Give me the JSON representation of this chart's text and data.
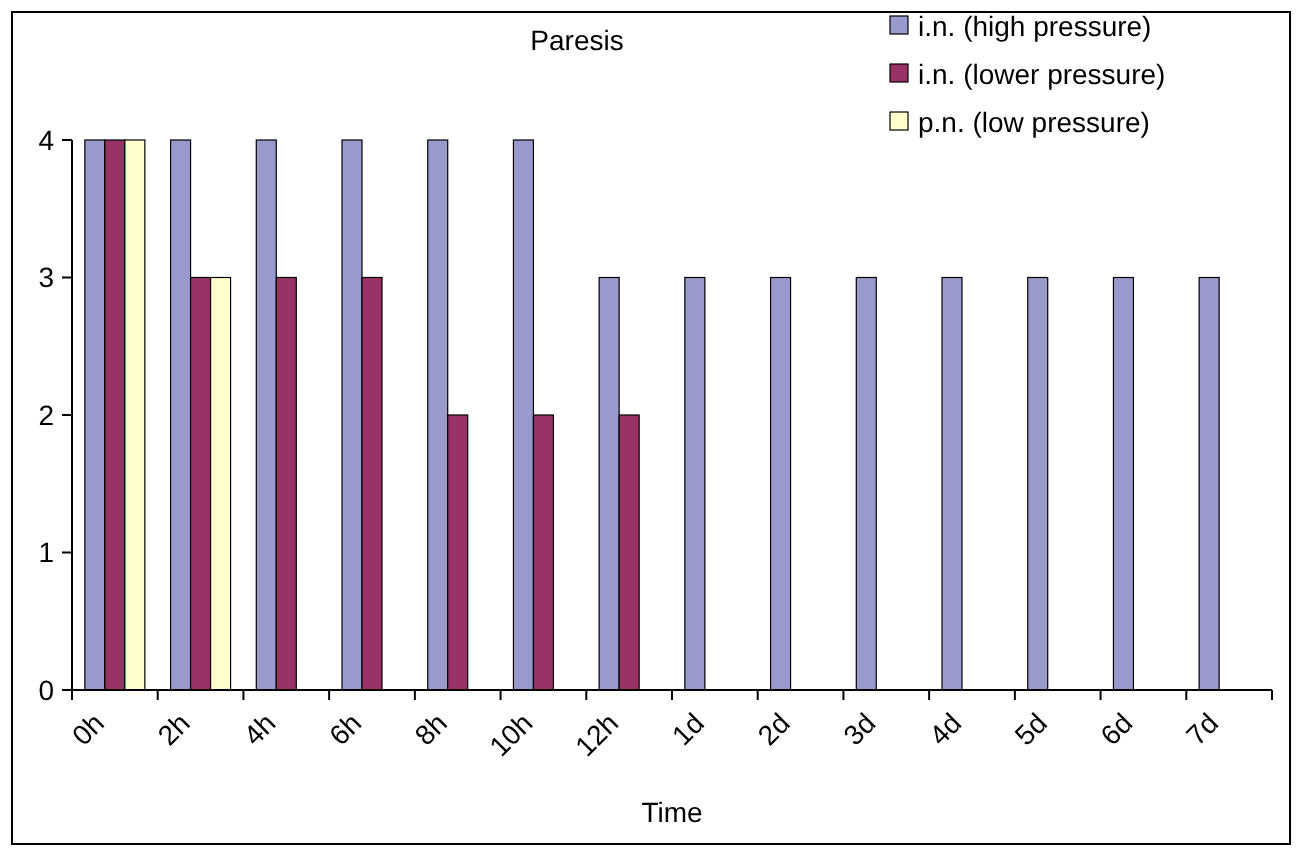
{
  "chart_data": {
    "type": "bar",
    "title": "Paresis",
    "xlabel": "Time",
    "categories": [
      "0h",
      "2h",
      "4h",
      "6h",
      "8h",
      "10h",
      "12h",
      "1d",
      "2d",
      "3d",
      "4d",
      "5d",
      "6d",
      "7d"
    ],
    "series": [
      {
        "name": "i.n. (high pressure)",
        "color": "#9999cc",
        "values": [
          4,
          4,
          4,
          4,
          4,
          4,
          3,
          3,
          3,
          3,
          3,
          3,
          3,
          3
        ]
      },
      {
        "name": "i.n. (lower pressure)",
        "color": "#993366",
        "values": [
          4,
          3,
          3,
          3,
          2,
          2,
          2,
          null,
          null,
          null,
          null,
          null,
          null,
          null
        ]
      },
      {
        "name": "p.n. (low pressure)",
        "color": "#ffffcc",
        "values": [
          4,
          3,
          null,
          null,
          null,
          null,
          null,
          null,
          null,
          null,
          null,
          null,
          null,
          null
        ]
      }
    ],
    "ylim": [
      0,
      4
    ],
    "yticks": [
      0,
      1,
      2,
      3,
      4
    ],
    "grid": false,
    "legend": "top right"
  }
}
